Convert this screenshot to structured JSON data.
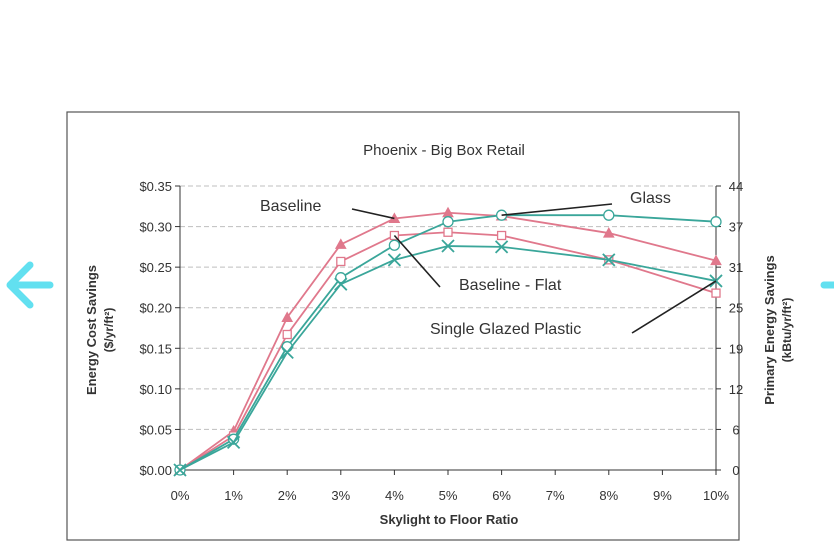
{
  "chart_data": {
    "type": "line",
    "title": "Phoenix - Big Box Retail",
    "xlabel": "Skylight to Floor Ratio",
    "ylabel": "Energy Cost Savings",
    "ylabel_unit": "($/yr/ft²)",
    "y2label": "Primary Energy Savings",
    "y2label_unit": "(kBtu/yr/ft²)",
    "x_ticks": [
      "0%",
      "1%",
      "2%",
      "3%",
      "4%",
      "5%",
      "6%",
      "7%",
      "8%",
      "9%",
      "10%"
    ],
    "ylim": [
      0,
      0.35
    ],
    "y_ticks": [
      "$0.00",
      "$0.05",
      "$0.10",
      "$0.15",
      "$0.20",
      "$0.25",
      "$0.30",
      "$0.35"
    ],
    "y2_ticks": [
      "0",
      "6",
      "12",
      "19",
      "25",
      "31",
      "37",
      "44"
    ],
    "grid": "horizontal dashed",
    "series": [
      {
        "name": "Baseline",
        "color": "#e0788c",
        "marker": "triangle",
        "x": [
          0,
          1,
          2,
          3,
          4,
          5,
          6,
          8,
          10
        ],
        "values": [
          0.0,
          0.048,
          0.188,
          0.278,
          0.31,
          0.317,
          0.313,
          0.292,
          0.258
        ]
      },
      {
        "name": "Baseline - Flat",
        "color": "#e0788c",
        "marker": "square",
        "x": [
          0,
          1,
          2,
          3,
          4,
          5,
          6,
          8,
          10
        ],
        "values": [
          0.0,
          0.042,
          0.167,
          0.257,
          0.289,
          0.293,
          0.289,
          0.259,
          0.218
        ]
      },
      {
        "name": "Glass",
        "color": "#3aa69a",
        "marker": "circle",
        "x": [
          0,
          1,
          2,
          3,
          4,
          5,
          6,
          8,
          10
        ],
        "values": [
          0.0,
          0.038,
          0.152,
          0.237,
          0.277,
          0.306,
          0.314,
          0.314,
          0.306
        ]
      },
      {
        "name": "Single Glazed Plastic",
        "color": "#3aa69a",
        "marker": "x",
        "x": [
          0,
          1,
          2,
          3,
          4,
          5,
          6,
          8,
          10
        ],
        "values": [
          0.0,
          0.034,
          0.145,
          0.229,
          0.259,
          0.276,
          0.275,
          0.259,
          0.233
        ]
      }
    ],
    "annotations": [
      {
        "text": "Baseline",
        "series": 0
      },
      {
        "text": "Glass",
        "series": 2
      },
      {
        "text": "Baseline - Flat",
        "series": 1
      },
      {
        "text": "Single Glazed Plastic",
        "series": 3
      }
    ]
  },
  "colors": {
    "nav_arrow": "#62e0f0",
    "axis": "#333333",
    "grid": "#bfbfbf"
  }
}
